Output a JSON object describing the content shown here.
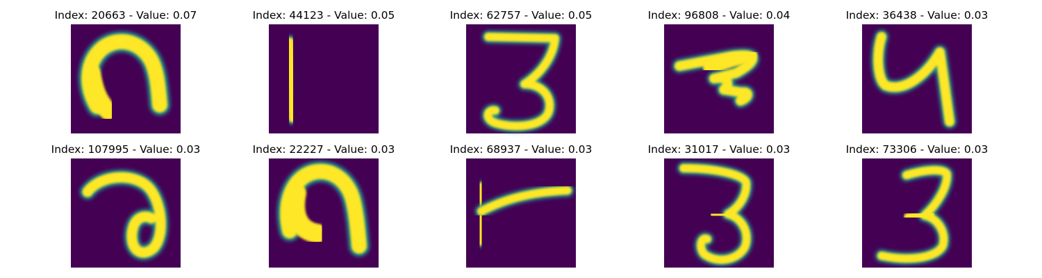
{
  "figure": {
    "background": "#ffffff",
    "colormap": "viridis",
    "colormap_stops": [
      "#440154",
      "#3b528b",
      "#21908d",
      "#5dc963",
      "#fde725"
    ]
  },
  "panels": [
    {
      "title": "Index: 20663 - Value: 0.07",
      "glyph": "inverted-u"
    },
    {
      "title": "Index: 44123 - Value: 0.05",
      "glyph": "t-rotated"
    },
    {
      "title": "Index: 62757 - Value: 0.05",
      "glyph": "three"
    },
    {
      "title": "Index: 96808 - Value: 0.04",
      "glyph": "scrawl"
    },
    {
      "title": "Index: 36438 - Value: 0.03",
      "glyph": "four-open"
    },
    {
      "title": "Index: 107995 - Value: 0.03",
      "glyph": "hook-loop"
    },
    {
      "title": "Index: 22227 - Value: 0.03",
      "glyph": "inverted-u-thick"
    },
    {
      "title": "Index: 68937 - Value: 0.03",
      "glyph": "t-rotated-2"
    },
    {
      "title": "Index: 31017 - Value: 0.03",
      "glyph": "three-2"
    },
    {
      "title": "Index: 73306 - Value: 0.03",
      "glyph": "three-3"
    }
  ]
}
